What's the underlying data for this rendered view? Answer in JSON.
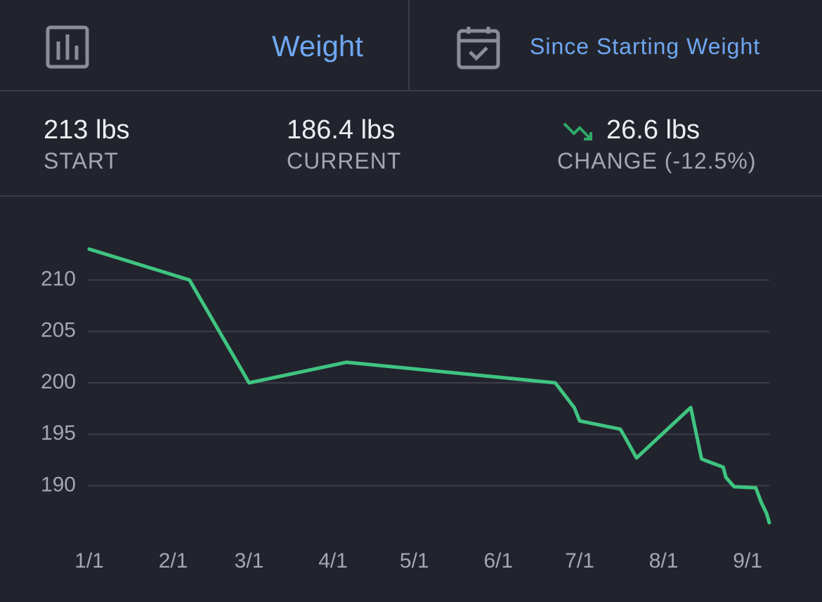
{
  "header": {
    "metric": "Weight",
    "range": "Since Starting Weight"
  },
  "stats": [
    {
      "value": "213 lbs",
      "label": "START"
    },
    {
      "value": "186.4 lbs",
      "label": "CURRENT"
    },
    {
      "value": "26.6 lbs",
      "label": "CHANGE (-12.5%)"
    }
  ],
  "chart_data": {
    "type": "line",
    "x": [
      "1/1",
      "2/7",
      "3/1",
      "4/6",
      "6/22",
      "6/29",
      "7/1",
      "7/16",
      "7/18",
      "7/22",
      "8/11",
      "8/15",
      "8/23",
      "8/24",
      "8/27",
      "9/4",
      "9/6",
      "9/8",
      "9/9"
    ],
    "values": [
      213,
      210,
      200,
      202,
      200,
      197.6,
      196.3,
      195.5,
      194.6,
      192.7,
      197.6,
      192.6,
      191.8,
      190.8,
      189.9,
      189.8,
      188.4,
      187.3,
      186.4
    ],
    "color": "#3fc581",
    "xlim": [
      "1/1",
      "9/9"
    ],
    "xticks": [
      "1/1",
      "2/1",
      "3/1",
      "4/1",
      "5/1",
      "6/1",
      "7/1",
      "8/1",
      "9/1"
    ],
    "ylim": [
      186,
      214
    ],
    "yticks": [
      190,
      195,
      200,
      205,
      210
    ],
    "grid": true
  }
}
